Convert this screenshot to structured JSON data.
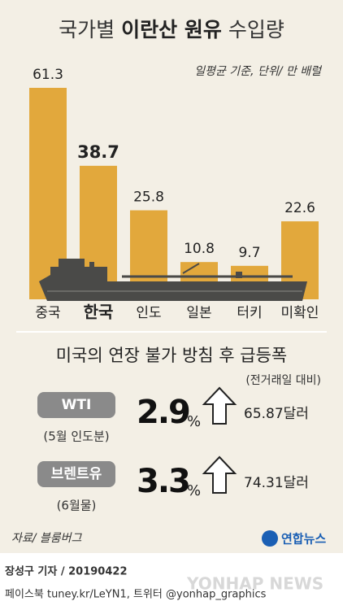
{
  "chart_data": {
    "type": "bar",
    "title": [
      "국가별",
      "이란산 원유",
      "수입량"
    ],
    "subtitle": "일평균 기준, 단위/ 만 배럴",
    "categories": [
      "중국",
      "한국",
      "인도",
      "일본",
      "터키",
      "미확인"
    ],
    "values": [
      61.3,
      38.7,
      25.8,
      10.8,
      9.7,
      22.6
    ],
    "color": "#e2a83c"
  },
  "panel": {
    "title": "미국의 연장 불가 방침 후 급등폭",
    "note": "(전거래일 대비)",
    "rows": [
      {
        "name": "WTI",
        "detail": "(5월 인도분)",
        "change": "2.9",
        "unit": "%",
        "price": "65.87달러"
      },
      {
        "name": "브렌트유",
        "detail": "(6월물)",
        "change": "3.3",
        "unit": "%",
        "price": "74.31달러"
      }
    ]
  },
  "footer": {
    "source": "자료/ 블룸버그",
    "logo": "연합뉴스",
    "byline": "장성구 기자 / 20190422",
    "social": "페이스북 tuney.kr/LeYN1, 트위터 @yonhap_graphics",
    "watermark": "YONHAP NEWS"
  }
}
